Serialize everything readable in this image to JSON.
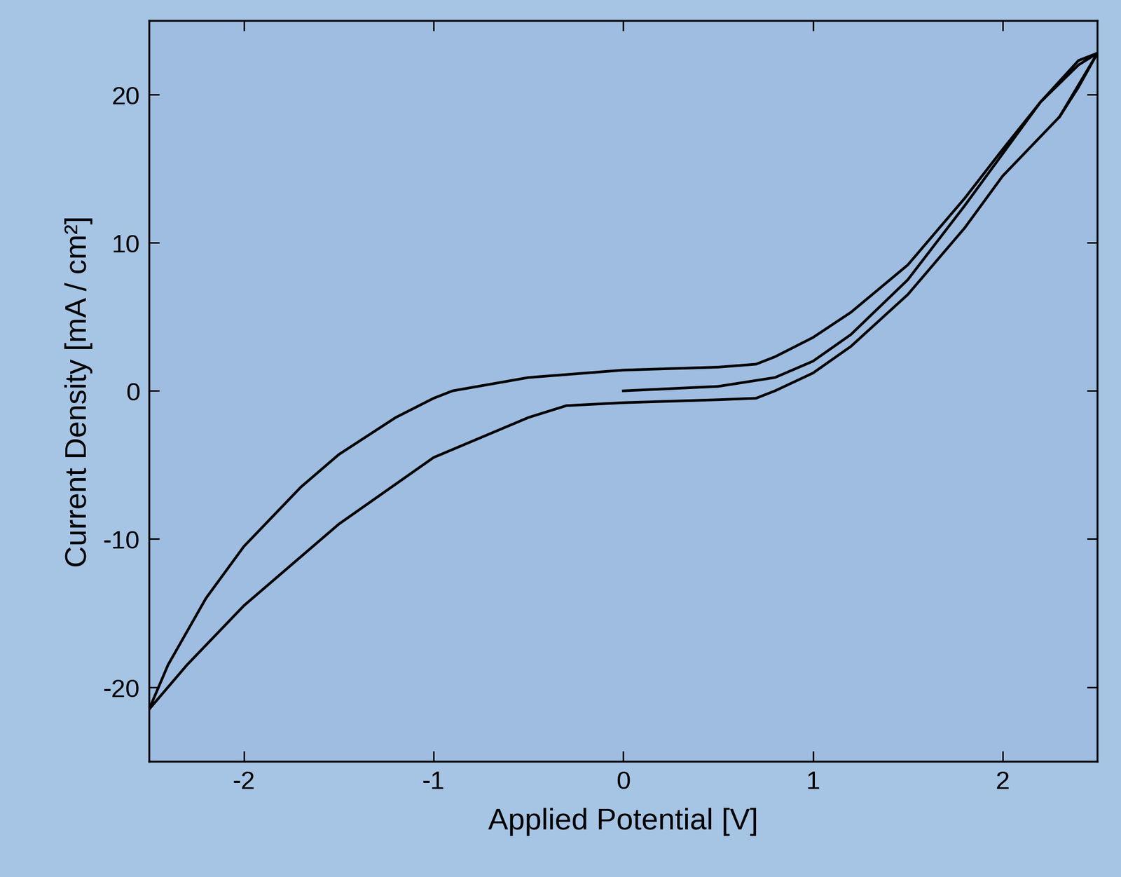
{
  "chart_data": {
    "type": "line",
    "x_label": "Applied Potential [V]",
    "y_label": "Current Density [mA / cm²]",
    "x": [
      0,
      0.5,
      0.8,
      1.0,
      1.2,
      1.5,
      1.8,
      2.0,
      2.2,
      2.4,
      2.5,
      2.3,
      2.0,
      1.8,
      1.5,
      1.2,
      1.0,
      0.8,
      0.7,
      0.5,
      0.0,
      -0.3,
      -0.5,
      -1.0,
      -1.5,
      -2.0,
      -2.3,
      -2.5,
      -2.4,
      -2.2,
      -2.0,
      -1.7,
      -1.5,
      -1.2,
      -1.0,
      -0.9,
      -0.5,
      0.0,
      0.5,
      0.7,
      0.8,
      1.0,
      1.2,
      1.5,
      1.8,
      2.0,
      2.2,
      2.4,
      2.5,
      2.4,
      2.3
    ],
    "values": [
      0,
      0.3,
      0.9,
      2.0,
      3.8,
      7.5,
      12.5,
      16.0,
      19.5,
      22.0,
      22.8,
      18.5,
      14.5,
      11.0,
      6.5,
      3.0,
      1.2,
      0.0,
      -0.5,
      -0.6,
      -0.8,
      -1.0,
      -1.8,
      -4.5,
      -9.0,
      -14.5,
      -18.5,
      -21.5,
      -18.5,
      -14.0,
      -10.5,
      -6.5,
      -4.3,
      -1.8,
      -0.5,
      0.0,
      0.9,
      1.4,
      1.6,
      1.8,
      2.3,
      3.6,
      5.3,
      8.5,
      13.0,
      16.3,
      19.5,
      22.3,
      22.8,
      20.5,
      18.5
    ],
    "color": "#000000",
    "xlim": [
      -2.5,
      2.5
    ],
    "xticks": [
      -2,
      -1,
      0,
      1,
      2
    ],
    "ylim": [
      -25,
      25
    ],
    "yticks": [
      -20,
      -10,
      0,
      10,
      20
    ],
    "grid": false
  }
}
